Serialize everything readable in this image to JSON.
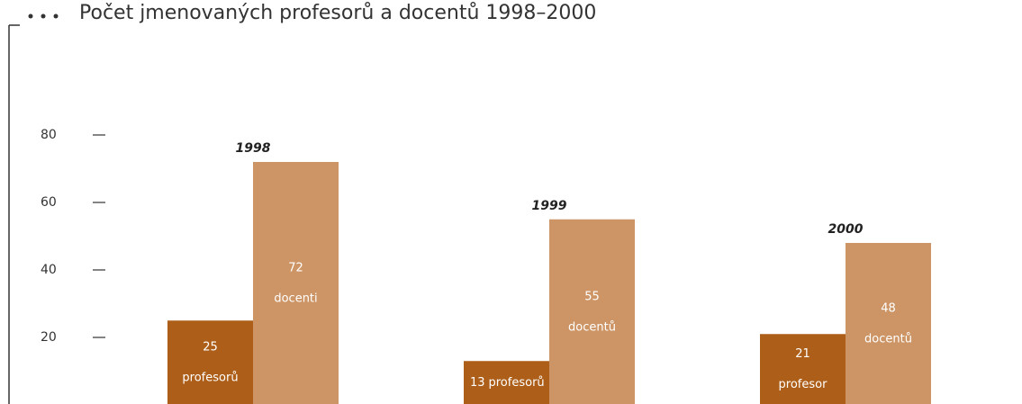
{
  "chart_data": {
    "type": "bar",
    "title": "Počet jmenovaných profesorů a docentů 1998–2000",
    "categories": [
      "1998",
      "1999",
      "2000"
    ],
    "series": [
      {
        "color": "#ad5f19",
        "values": [
          25,
          13,
          21
        ],
        "labels": [
          "profesorů",
          "profesorů",
          "profesor"
        ]
      },
      {
        "color": "#cd9565",
        "values": [
          72,
          55,
          48
        ],
        "labels": [
          "docenti",
          "docentů",
          "docentů"
        ]
      }
    ],
    "ylim": [
      0,
      80
    ],
    "yticks": [
      20,
      40,
      60,
      80
    ]
  }
}
